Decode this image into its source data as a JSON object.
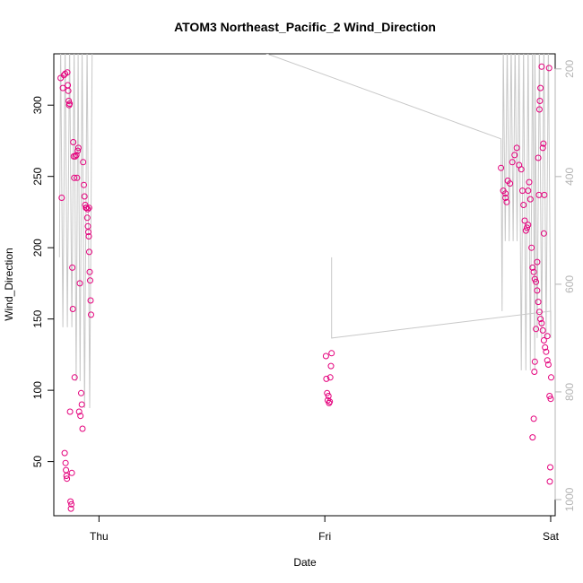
{
  "chart_data": {
    "type": "scatter",
    "title": "ATOM3 Northeast_Pacific_2 Wind_Direction",
    "xlabel": "Date",
    "ylabel": "Wind_Direction",
    "x_ticks": [
      "Thu",
      "Fri",
      "Sat"
    ],
    "x_range_days": [
      -0.2,
      2.02
    ],
    "ylim": [
      12,
      336
    ],
    "y_ticks": [
      50,
      100,
      150,
      200,
      250,
      300
    ],
    "y2_ticks": [
      200,
      400,
      600,
      800,
      1000
    ],
    "y2lim": [
      172,
      1030
    ],
    "y2_reversed": true,
    "grid": false,
    "colors": {
      "points": "#e4007c",
      "line": "#c8c8c8",
      "axis": "#000000",
      "right_axis": "#b4b4b4"
    },
    "series": [
      {
        "values": [
          [
            -0.17,
            319
          ],
          [
            -0.165,
            235
          ],
          [
            -0.16,
            312
          ],
          [
            -0.155,
            321
          ],
          [
            -0.152,
            56
          ],
          [
            -0.15,
            322
          ],
          [
            -0.148,
            49
          ],
          [
            -0.146,
            44
          ],
          [
            -0.144,
            40
          ],
          [
            -0.142,
            38
          ],
          [
            -0.14,
            323
          ],
          [
            -0.138,
            314
          ],
          [
            -0.136,
            310
          ],
          [
            -0.134,
            303
          ],
          [
            -0.132,
            300
          ],
          [
            -0.13,
            301
          ],
          [
            -0.128,
            85
          ],
          [
            -0.126,
            22
          ],
          [
            -0.124,
            17
          ],
          [
            -0.122,
            20
          ],
          [
            -0.12,
            42
          ],
          [
            -0.118,
            186
          ],
          [
            -0.116,
            157
          ],
          [
            -0.114,
            274
          ],
          [
            -0.112,
            264
          ],
          [
            -0.11,
            249
          ],
          [
            -0.108,
            109
          ],
          [
            -0.105,
            264
          ],
          [
            -0.1,
            265
          ],
          [
            -0.097,
            249
          ],
          [
            -0.094,
            268
          ],
          [
            -0.091,
            270
          ],
          [
            -0.088,
            85
          ],
          [
            -0.085,
            175
          ],
          [
            -0.082,
            82
          ],
          [
            -0.079,
            98
          ],
          [
            -0.076,
            90
          ],
          [
            -0.073,
            73
          ],
          [
            -0.07,
            260
          ],
          [
            -0.067,
            244
          ],
          [
            -0.064,
            236
          ],
          [
            -0.061,
            230
          ],
          [
            -0.058,
            228
          ],
          [
            -0.055,
            228
          ],
          [
            -0.052,
            221
          ],
          [
            -0.049,
            215
          ],
          [
            -0.047,
            211
          ],
          [
            -0.045,
            208
          ],
          [
            -0.043,
            197
          ],
          [
            -0.041,
            183
          ],
          [
            -0.039,
            177
          ],
          [
            -0.037,
            163
          ],
          [
            -0.035,
            153
          ],
          [
            -0.05,
            227
          ],
          [
            -0.044,
            228
          ],
          [
            1.005,
            124
          ],
          [
            1.007,
            108
          ],
          [
            1.01,
            98
          ],
          [
            1.013,
            93
          ],
          [
            1.016,
            96
          ],
          [
            1.019,
            91
          ],
          [
            1.022,
            92
          ],
          [
            1.024,
            109
          ],
          [
            1.027,
            117
          ],
          [
            1.03,
            126
          ],
          [
            1.78,
            256
          ],
          [
            1.79,
            240
          ],
          [
            1.8,
            238
          ],
          [
            1.81,
            247
          ],
          [
            1.82,
            245
          ],
          [
            1.83,
            260
          ],
          [
            1.84,
            265
          ],
          [
            1.85,
            270
          ],
          [
            1.86,
            258
          ],
          [
            1.87,
            255
          ],
          [
            1.875,
            240
          ],
          [
            1.88,
            230
          ],
          [
            1.885,
            219
          ],
          [
            1.89,
            212
          ],
          [
            1.895,
            214
          ],
          [
            1.9,
            216
          ],
          [
            1.905,
            246
          ],
          [
            1.91,
            234
          ],
          [
            1.915,
            200
          ],
          [
            1.92,
            186
          ],
          [
            1.925,
            183
          ],
          [
            1.93,
            178
          ],
          [
            1.935,
            176
          ],
          [
            1.94,
            170
          ],
          [
            1.945,
            162
          ],
          [
            1.95,
            155
          ],
          [
            1.955,
            150
          ],
          [
            1.96,
            147
          ],
          [
            1.965,
            142
          ],
          [
            1.97,
            135
          ],
          [
            1.975,
            130
          ],
          [
            1.98,
            127
          ],
          [
            1.985,
            121
          ],
          [
            1.99,
            118
          ],
          [
            1.995,
            96
          ],
          [
            2.0,
            94
          ],
          [
            2.002,
            109
          ],
          [
            1.998,
            46
          ],
          [
            1.996,
            36
          ],
          [
            1.993,
            326
          ],
          [
            1.96,
            327
          ],
          [
            1.955,
            312
          ],
          [
            1.952,
            303
          ],
          [
            1.95,
            297
          ],
          [
            1.948,
            237
          ],
          [
            1.945,
            263
          ],
          [
            1.94,
            190
          ],
          [
            1.965,
            270
          ],
          [
            1.968,
            273
          ],
          [
            1.97,
            210
          ],
          [
            1.972,
            237
          ],
          [
            1.93,
            120
          ],
          [
            1.928,
            113
          ],
          [
            1.925,
            80
          ],
          [
            1.92,
            67
          ],
          [
            1.935,
            143
          ],
          [
            1.985,
            138
          ],
          [
            1.8,
            235
          ],
          [
            1.805,
            232
          ],
          [
            1.9,
            240
          ]
        ]
      }
    ]
  }
}
